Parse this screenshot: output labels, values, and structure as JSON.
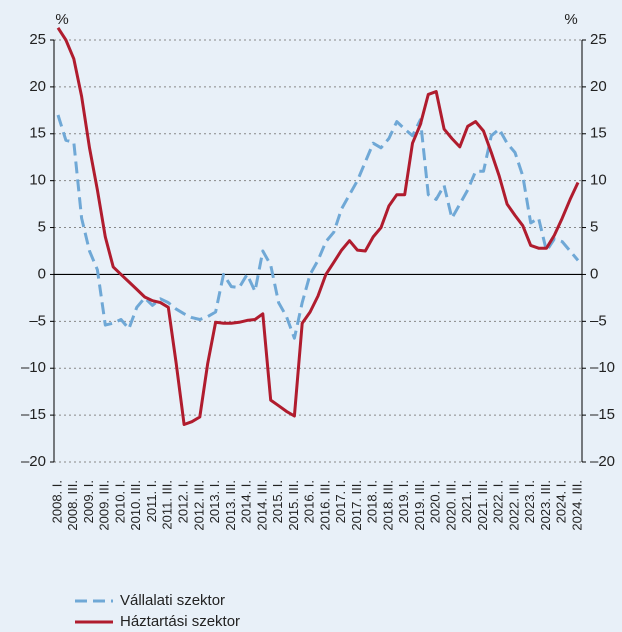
{
  "chart_data": {
    "type": "line",
    "y_label": "%",
    "y2_label": "%",
    "categories": [
      "2008. I.",
      null,
      "2008. III.",
      null,
      "2009. I.",
      null,
      "2009. III.",
      null,
      "2010. I.",
      null,
      "2010. III.",
      null,
      "2011. I.",
      null,
      "2011. III.",
      null,
      "2012. I.",
      null,
      "2012. III.",
      null,
      "2013. I.",
      null,
      "2013. III.",
      null,
      "2014. I.",
      null,
      "2014. III.",
      null,
      "2015. I.",
      null,
      "2015. III.",
      null,
      "2016. I.",
      null,
      "2016. III.",
      null,
      "2017. I.",
      null,
      "2017. III.",
      null,
      "2018. I.",
      null,
      "2018. III.",
      null,
      "2019. I.",
      null,
      "2019. III.",
      null,
      "2020. I.",
      null,
      "2020. III.",
      null,
      "2021. I.",
      null,
      "2021. III.",
      null,
      "2022. I.",
      null,
      "2022. III.",
      null,
      "2023. I.",
      null,
      "2023. III.",
      null,
      "2024. I.",
      null,
      "2024. III."
    ],
    "series": [
      {
        "name": "Vállalati szektor",
        "color": "#6fa8d6",
        "dash": true,
        "values": [
          17,
          14.3,
          14.1,
          6,
          2.5,
          0.5,
          -5.4,
          -5.2,
          -4.8,
          -5.8,
          -3.5,
          -2.5,
          -3.3,
          -2.6,
          -3,
          -3.7,
          -4.2,
          -4.6,
          -4.8,
          -4.5,
          -4,
          0,
          -1.3,
          -1.4,
          0,
          -1.8,
          2.5,
          1,
          -3,
          -4.5,
          -6.8,
          -3,
          0,
          1.5,
          3.5,
          4.5,
          7,
          8.5,
          10,
          12,
          14,
          13.5,
          14.5,
          16.3,
          15.5,
          14.8,
          16.5,
          8.5,
          8,
          9.5,
          6,
          7.5,
          9,
          11,
          11,
          14.8,
          15.5,
          14,
          13,
          10.5,
          5.5,
          6,
          2.5,
          3.8,
          3.5,
          2.5,
          1.5
        ]
      },
      {
        "name": "Háztartási szektor",
        "color": "#b01c2e",
        "dash": false,
        "values": [
          26.3,
          25,
          23,
          19,
          13.5,
          9,
          4,
          0.8,
          0,
          -0.8,
          -1.6,
          -2.4,
          -2.8,
          -3,
          -3.5,
          -9.5,
          -16,
          -15.7,
          -15.2,
          -9.5,
          -5.1,
          -5.2,
          -5.2,
          -5.1,
          -4.9,
          -4.8,
          -4.2,
          -13.4,
          -14,
          -14.6,
          -15.1,
          -5.2,
          -4,
          -2.3,
          0,
          1.3,
          2.6,
          3.6,
          2.6,
          2.5,
          4,
          5,
          7.3,
          8.5,
          8.5,
          14,
          16,
          19.2,
          19.5,
          15.5,
          14.5,
          13.6,
          15.8,
          16.3,
          15.3,
          13,
          10.5,
          7.5,
          6.3,
          5.2,
          3.1,
          2.8,
          2.8,
          4.2,
          6,
          8,
          9.8
        ]
      }
    ],
    "ylim": [
      -20,
      25
    ],
    "yticks": [
      {
        "value": -20,
        "label": "–20"
      },
      {
        "value": -15,
        "label": "–15"
      },
      {
        "value": -10,
        "label": "–10"
      },
      {
        "value": -5,
        "label": "–5"
      },
      0,
      5,
      10,
      15,
      20,
      25
    ],
    "y2lim": [
      -20,
      25
    ],
    "y2ticks": [
      {
        "value": -20,
        "label": "–20"
      },
      {
        "value": -15,
        "label": "–15"
      },
      {
        "value": -10,
        "label": "–10"
      },
      {
        "value": -5,
        "label": "–5"
      },
      0,
      5,
      10,
      15,
      20,
      25
    ],
    "grid": true
  }
}
